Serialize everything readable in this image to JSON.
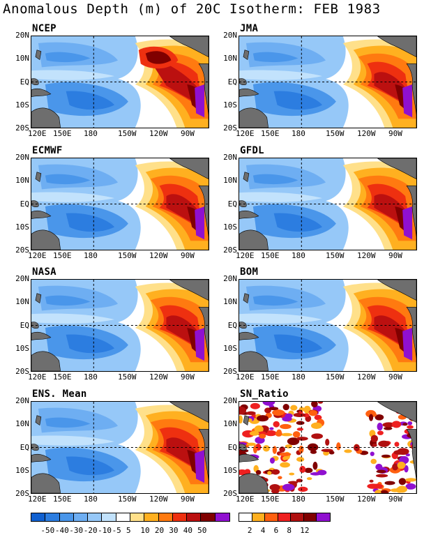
{
  "title": "Anomalous Depth (m) of 20C Isotherm: FEB 1983",
  "lat_labels": [
    "20N",
    "10N",
    "EQ",
    "10S",
    "20S"
  ],
  "lon_labels": [
    "120E",
    "150E",
    "180",
    "150W",
    "120W",
    "90W"
  ],
  "panels": [
    {
      "label": "NCEP"
    },
    {
      "label": "JMA"
    },
    {
      "label": "ECMWF"
    },
    {
      "label": "GFDL"
    },
    {
      "label": "NASA"
    },
    {
      "label": "BOM"
    },
    {
      "label": "ENS. Mean"
    },
    {
      "label": "SN_Ratio"
    }
  ],
  "colorbar_anomaly": {
    "labels": [
      "-50",
      "-40",
      "-30",
      "-20",
      "-10",
      "-5",
      "5",
      "10",
      "20",
      "30",
      "40",
      "50"
    ],
    "colors": [
      "#1060d0",
      "#2c7de0",
      "#4a96ea",
      "#6eaef2",
      "#96c8f8",
      "#c2e2fc",
      "#ffffff",
      "#ffe08a",
      "#ffb020",
      "#ff7a10",
      "#ee3010",
      "#bb1010",
      "#800000",
      "#9010d0"
    ]
  },
  "colorbar_sn": {
    "labels": [
      "2",
      "4",
      "6",
      "8",
      "12"
    ],
    "colors": [
      "#ffffff",
      "#ffb020",
      "#ff6010",
      "#ee2020",
      "#b01010",
      "#800000",
      "#9010d0"
    ]
  },
  "colors": {
    "land": "#6e6e6e",
    "background": "#ffffff"
  }
}
